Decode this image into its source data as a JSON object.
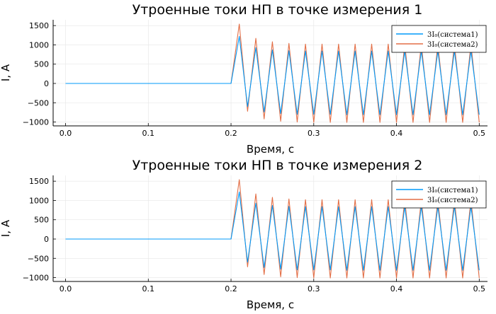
{
  "chart_data": [
    {
      "type": "line",
      "title": "Утроенные токи НП в точке измерения 1",
      "xlabel": "Время, с",
      "ylabel": "I, A",
      "xlim": [
        -0.015,
        0.51
      ],
      "ylim": [
        -1100,
        1650
      ],
      "xticks": [
        0.0,
        0.1,
        0.2,
        0.3,
        0.4,
        0.5
      ],
      "xtick_labels": [
        "0.0",
        "0.1",
        "0.2",
        "0.3",
        "0.4",
        "0.5"
      ],
      "yticks": [
        -1000,
        -500,
        0,
        500,
        1000,
        1500
      ],
      "ytick_labels": [
        "−1000",
        "−500",
        "0",
        "500",
        "1000",
        "1500"
      ],
      "grid": true,
      "legend_position": "top-right",
      "series": [
        {
          "name": "3I₀(система1)",
          "color": "#009AFA",
          "x": [
            0,
            0.2,
            0.2,
            0.21,
            0.22,
            0.23,
            0.24,
            0.25,
            0.26,
            0.27,
            0.28,
            0.29,
            0.3,
            0.31,
            0.32,
            0.33,
            0.34,
            0.35,
            0.36,
            0.37,
            0.38,
            0.39,
            0.4,
            0.41,
            0.42,
            0.43,
            0.44,
            0.45,
            0.46,
            0.47,
            0.48,
            0.49,
            0.5
          ],
          "y": [
            0,
            0,
            0,
            1220,
            -600,
            930,
            -740,
            870,
            -780,
            850,
            -800,
            840,
            -800,
            840,
            -800,
            840,
            -810,
            840,
            -810,
            840,
            -810,
            840,
            -810,
            840,
            -810,
            840,
            -810,
            840,
            -810,
            840,
            -810,
            840,
            -810
          ]
        },
        {
          "name": "3I₀(система2)",
          "color": "#E36F47",
          "x": [
            0,
            0.2,
            0.2,
            0.21,
            0.22,
            0.23,
            0.24,
            0.25,
            0.26,
            0.27,
            0.28,
            0.29,
            0.3,
            0.31,
            0.32,
            0.33,
            0.34,
            0.35,
            0.36,
            0.37,
            0.38,
            0.39,
            0.4,
            0.41,
            0.42,
            0.43,
            0.44,
            0.45,
            0.46,
            0.47,
            0.48,
            0.49,
            0.5
          ],
          "y": [
            0,
            0,
            0,
            1540,
            -720,
            1170,
            -920,
            1080,
            -980,
            1040,
            -1000,
            1020,
            -1010,
            1020,
            -1010,
            1020,
            -1010,
            1020,
            -1010,
            1020,
            -1010,
            1020,
            -1010,
            1020,
            -1010,
            1020,
            -1010,
            1020,
            -1010,
            1020,
            -1010,
            1020,
            -1010
          ]
        }
      ]
    },
    {
      "type": "line",
      "title": "Утроенные токи НП в точке измерения 2",
      "xlabel": "Время, с",
      "ylabel": "I, A",
      "xlim": [
        -0.015,
        0.51
      ],
      "ylim": [
        -1100,
        1650
      ],
      "xticks": [
        0.0,
        0.1,
        0.2,
        0.3,
        0.4,
        0.5
      ],
      "xtick_labels": [
        "0.0",
        "0.1",
        "0.2",
        "0.3",
        "0.4",
        "0.5"
      ],
      "yticks": [
        -1000,
        -500,
        0,
        500,
        1000,
        1500
      ],
      "ytick_labels": [
        "−1000",
        "−500",
        "0",
        "500",
        "1000",
        "1500"
      ],
      "grid": true,
      "legend_position": "top-right",
      "series": [
        {
          "name": "3I₀(система1)",
          "color": "#009AFA",
          "x": [
            0,
            0.2,
            0.2,
            0.21,
            0.22,
            0.23,
            0.24,
            0.25,
            0.26,
            0.27,
            0.28,
            0.29,
            0.3,
            0.31,
            0.32,
            0.33,
            0.34,
            0.35,
            0.36,
            0.37,
            0.38,
            0.39,
            0.4,
            0.41,
            0.42,
            0.43,
            0.44,
            0.45,
            0.46,
            0.47,
            0.48,
            0.49,
            0.5
          ],
          "y": [
            0,
            0,
            0,
            1220,
            -600,
            930,
            -740,
            870,
            -780,
            850,
            -800,
            840,
            -800,
            840,
            -800,
            840,
            -810,
            840,
            -810,
            840,
            -810,
            840,
            -810,
            840,
            -810,
            840,
            -810,
            840,
            -810,
            840,
            -810,
            840,
            -810
          ]
        },
        {
          "name": "3I₀(система2)",
          "color": "#E36F47",
          "x": [
            0,
            0.2,
            0.2,
            0.21,
            0.22,
            0.23,
            0.24,
            0.25,
            0.26,
            0.27,
            0.28,
            0.29,
            0.3,
            0.31,
            0.32,
            0.33,
            0.34,
            0.35,
            0.36,
            0.37,
            0.38,
            0.39,
            0.4,
            0.41,
            0.42,
            0.43,
            0.44,
            0.45,
            0.46,
            0.47,
            0.48,
            0.49,
            0.5
          ],
          "y": [
            0,
            0,
            0,
            1540,
            -720,
            1170,
            -920,
            1080,
            -980,
            1040,
            -1000,
            1020,
            -1010,
            1020,
            -1010,
            1020,
            -1010,
            1020,
            -1010,
            1020,
            -1010,
            1020,
            -1010,
            1020,
            -1010,
            1020,
            -1010,
            1020,
            -1010,
            1020,
            -1010,
            1020,
            -1010
          ]
        }
      ]
    }
  ]
}
